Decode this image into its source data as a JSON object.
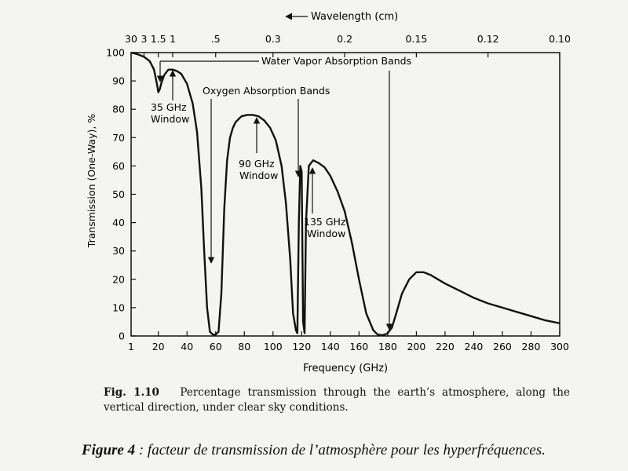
{
  "chart_data": {
    "type": "line",
    "xlabel": "Frequency (GHz)",
    "ylabel": "Transmission (One-Way), %",
    "top_axis_label": "Wavelength (cm)",
    "xlim": [
      1,
      300
    ],
    "ylim": [
      0,
      100
    ],
    "x_ticks": [
      {
        "v": 1,
        "label": "1"
      },
      {
        "v": 20,
        "label": "20"
      },
      {
        "v": 40,
        "label": "40"
      },
      {
        "v": 60,
        "label": "60"
      },
      {
        "v": 80,
        "label": "80"
      },
      {
        "v": 100,
        "label": "100"
      },
      {
        "v": 120,
        "label": "120"
      },
      {
        "v": 140,
        "label": "140"
      },
      {
        "v": 160,
        "label": "160"
      },
      {
        "v": 180,
        "label": "180"
      },
      {
        "v": 200,
        "label": "200"
      },
      {
        "v": 220,
        "label": "220"
      },
      {
        "v": 240,
        "label": "240"
      },
      {
        "v": 260,
        "label": "260"
      },
      {
        "v": 280,
        "label": "280"
      },
      {
        "v": 300,
        "label": "300"
      }
    ],
    "y_ticks": [
      0,
      10,
      20,
      30,
      40,
      50,
      60,
      70,
      80,
      90,
      100
    ],
    "top_ticks": [
      {
        "v": 1,
        "label": "30"
      },
      {
        "v": 10,
        "label": "3"
      },
      {
        "v": 20,
        "label": "1.5"
      },
      {
        "v": 30,
        "label": "1"
      },
      {
        "v": 60,
        "label": ".5"
      },
      {
        "v": 100,
        "label": "0.3"
      },
      {
        "v": 150,
        "label": "0.2"
      },
      {
        "v": 200,
        "label": "0.15"
      },
      {
        "v": 250,
        "label": "0.12"
      },
      {
        "v": 300,
        "label": "0.10"
      }
    ],
    "series": [
      {
        "x": [
          1,
          5,
          10,
          14,
          17,
          19,
          20,
          21,
          22,
          24,
          27,
          30,
          33,
          36,
          40,
          44,
          47,
          50,
          52,
          54,
          56,
          58,
          60,
          62,
          64,
          66,
          68,
          70,
          72,
          74,
          78,
          82,
          86,
          90,
          94,
          98,
          102,
          106,
          109,
          112,
          114,
          116,
          117,
          118,
          119,
          120,
          121,
          122,
          123,
          125,
          128,
          132,
          136,
          140,
          145,
          150,
          155,
          160,
          165,
          170,
          173,
          176,
          178,
          180,
          183,
          186,
          190,
          195,
          200,
          205,
          210,
          215,
          220,
          230,
          240,
          250,
          260,
          270,
          280,
          290,
          300
        ],
        "y": [
          100,
          99.5,
          98.5,
          97,
          94,
          89,
          86,
          87,
          89,
          92,
          94,
          94,
          93.5,
          92.5,
          89,
          82,
          72,
          52,
          30,
          10,
          1.5,
          0.5,
          0.5,
          1.5,
          15,
          45,
          62,
          70,
          73.5,
          75.5,
          77.5,
          78,
          78,
          77.5,
          76,
          73.5,
          69,
          60,
          47,
          27,
          8,
          2,
          1,
          40,
          60,
          58,
          5,
          1,
          40,
          60,
          62,
          61,
          59.5,
          56.5,
          51,
          44,
          33,
          20,
          8,
          2,
          0.5,
          0.3,
          0.5,
          1,
          3,
          8,
          15,
          20,
          22.5,
          22.5,
          21.5,
          20,
          18.5,
          16,
          13.5,
          11.5,
          10,
          8.5,
          7,
          5.5,
          4.5
        ]
      }
    ],
    "annotations": {
      "water_vapor": "Water Vapor Absorption Bands",
      "oxygen": "Oxygen Absorption Bands",
      "w35_line1": "35 GHz",
      "w35_line2": "Window",
      "w90_line1": "90 GHz",
      "w90_line2": "Window",
      "w135_line1": "135 GHz",
      "w135_line2": "Window"
    }
  },
  "caption": {
    "fig_label": "Fig. 1.10",
    "text": "Percentage transmission through the earth’s atmosphere, along the vertical direction, under clear sky conditions."
  },
  "figure4": {
    "label": "Figure 4",
    "text": " : facteur de transmission de l’atmosphère pour les hyperfréquences."
  }
}
